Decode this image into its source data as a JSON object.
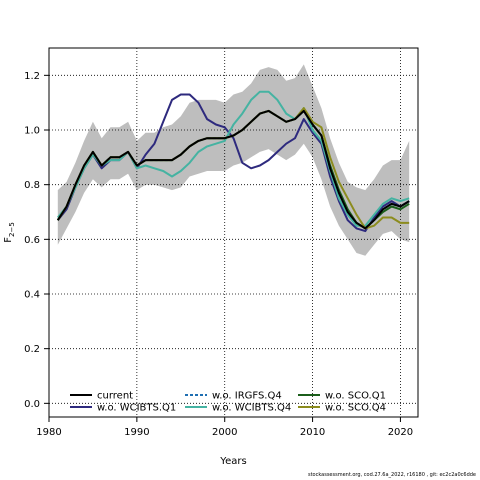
{
  "chart_data": {
    "type": "line",
    "xlabel": "Years",
    "ylabel": "F",
    "ylabel_sub": "2−5",
    "xlim": [
      1980,
      2022
    ],
    "ylim": [
      -0.05,
      1.3
    ],
    "x_ticks": [
      1980,
      1990,
      2000,
      2010,
      2020
    ],
    "y_ticks": [
      0.0,
      0.2,
      0.4,
      0.6,
      0.8,
      1.0,
      1.2
    ],
    "grid": true,
    "legend_position": "bottom-left",
    "band": {
      "color": "#bebebe",
      "x": [
        1981,
        1982,
        1983,
        1984,
        1985,
        1986,
        1987,
        1988,
        1989,
        1990,
        1991,
        1992,
        1993,
        1994,
        1995,
        1996,
        1997,
        1998,
        1999,
        2000,
        2001,
        2002,
        2003,
        2004,
        2005,
        2006,
        2007,
        2008,
        2009,
        2010,
        2011,
        2012,
        2013,
        2014,
        2015,
        2016,
        2017,
        2018,
        2019,
        2020,
        2021
      ],
      "upper": [
        0.78,
        0.81,
        0.88,
        0.96,
        1.03,
        0.97,
        1.01,
        1.01,
        1.03,
        0.96,
        0.99,
        0.99,
        1.01,
        1.02,
        1.05,
        1.1,
        1.11,
        1.11,
        1.11,
        1.1,
        1.13,
        1.14,
        1.17,
        1.22,
        1.23,
        1.22,
        1.18,
        1.19,
        1.24,
        1.16,
        1.08,
        0.97,
        0.88,
        0.81,
        0.79,
        0.78,
        0.82,
        0.87,
        0.89,
        0.89,
        0.96
      ],
      "lower": [
        0.58,
        0.64,
        0.7,
        0.77,
        0.82,
        0.79,
        0.82,
        0.82,
        0.84,
        0.78,
        0.8,
        0.8,
        0.79,
        0.78,
        0.79,
        0.83,
        0.84,
        0.85,
        0.85,
        0.85,
        0.87,
        0.88,
        0.9,
        0.92,
        0.93,
        0.91,
        0.89,
        0.91,
        0.95,
        0.9,
        0.82,
        0.72,
        0.65,
        0.6,
        0.55,
        0.54,
        0.58,
        0.62,
        0.63,
        0.6,
        0.59
      ]
    },
    "x": [
      1981,
      1982,
      1983,
      1984,
      1985,
      1986,
      1987,
      1988,
      1989,
      1990,
      1991,
      1992,
      1993,
      1994,
      1995,
      1996,
      1997,
      1998,
      1999,
      2000,
      2001,
      2002,
      2003,
      2004,
      2005,
      2006,
      2007,
      2008,
      2009,
      2010,
      2011,
      2012,
      2013,
      2014,
      2015,
      2016,
      2017,
      2018,
      2019,
      2020,
      2021
    ],
    "series": [
      {
        "name": "current",
        "color": "#000000",
        "dash": "solid",
        "values": [
          0.67,
          0.72,
          0.8,
          0.87,
          0.92,
          0.87,
          0.9,
          0.9,
          0.92,
          0.87,
          0.89,
          0.89,
          0.89,
          0.89,
          0.91,
          0.94,
          0.96,
          0.97,
          0.97,
          0.97,
          0.98,
          1.0,
          1.03,
          1.06,
          1.07,
          1.05,
          1.03,
          1.04,
          1.07,
          1.02,
          0.98,
          0.86,
          0.77,
          0.7,
          0.66,
          0.64,
          0.67,
          0.71,
          0.73,
          0.72,
          0.74
        ]
      },
      {
        "name": "w.o. WCIBTS.Q1",
        "color": "#2e2a7e",
        "dash": "solid",
        "values": [
          0.67,
          0.71,
          0.79,
          0.86,
          0.91,
          0.86,
          0.89,
          0.89,
          0.92,
          0.86,
          0.91,
          0.95,
          1.03,
          1.11,
          1.13,
          1.13,
          1.1,
          1.04,
          1.02,
          1.01,
          0.97,
          0.88,
          0.86,
          0.87,
          0.89,
          0.92,
          0.95,
          0.97,
          1.04,
          0.99,
          0.95,
          0.83,
          0.74,
          0.67,
          0.64,
          0.63,
          0.68,
          0.72,
          0.74,
          0.72,
          0.74
        ]
      },
      {
        "name": "w.o. IRGFS.Q4",
        "color": "#1f6fb2",
        "dash": "dashed",
        "values": [
          0.67,
          0.72,
          0.8,
          0.87,
          0.92,
          0.87,
          0.9,
          0.9,
          0.92,
          0.87,
          0.89,
          0.89,
          0.89,
          0.89,
          0.91,
          0.94,
          0.96,
          0.97,
          0.97,
          0.97,
          0.98,
          1.0,
          1.03,
          1.06,
          1.07,
          1.05,
          1.03,
          1.04,
          1.07,
          1.02,
          0.98,
          0.86,
          0.77,
          0.7,
          0.66,
          0.64,
          0.67,
          0.71,
          0.73,
          0.72,
          0.74
        ]
      },
      {
        "name": "w.o. WCIBTS.Q4",
        "color": "#45b3a2",
        "dash": "solid",
        "values": [
          0.68,
          0.72,
          0.79,
          0.86,
          0.91,
          0.87,
          0.89,
          0.89,
          0.92,
          0.86,
          0.87,
          0.86,
          0.85,
          0.83,
          0.85,
          0.88,
          0.92,
          0.94,
          0.95,
          0.96,
          1.02,
          1.06,
          1.11,
          1.14,
          1.14,
          1.11,
          1.06,
          1.04,
          1.08,
          1.0,
          0.96,
          0.85,
          0.75,
          0.69,
          0.65,
          0.65,
          0.69,
          0.73,
          0.75,
          0.74,
          0.75
        ]
      },
      {
        "name": "w.o. SCO.Q1",
        "color": "#1b5e1b",
        "dash": "solid",
        "values": [
          0.67,
          0.72,
          0.8,
          0.87,
          0.92,
          0.87,
          0.9,
          0.9,
          0.92,
          0.87,
          0.89,
          0.89,
          0.89,
          0.89,
          0.91,
          0.94,
          0.96,
          0.97,
          0.97,
          0.97,
          0.98,
          1.0,
          1.03,
          1.06,
          1.07,
          1.05,
          1.03,
          1.04,
          1.07,
          1.02,
          0.98,
          0.87,
          0.78,
          0.71,
          0.66,
          0.64,
          0.67,
          0.7,
          0.72,
          0.71,
          0.73
        ]
      },
      {
        "name": "w.o. SCO.Q4",
        "color": "#8c8c1e",
        "dash": "solid",
        "values": [
          0.67,
          0.72,
          0.8,
          0.87,
          0.92,
          0.87,
          0.9,
          0.9,
          0.92,
          0.87,
          0.89,
          0.89,
          0.89,
          0.89,
          0.91,
          0.94,
          0.96,
          0.97,
          0.97,
          0.97,
          0.98,
          1.0,
          1.03,
          1.06,
          1.07,
          1.05,
          1.03,
          1.04,
          1.08,
          1.03,
          1.01,
          0.9,
          0.81,
          0.75,
          0.69,
          0.64,
          0.65,
          0.68,
          0.68,
          0.66,
          0.66
        ]
      }
    ]
  },
  "legend": {
    "items": [
      {
        "label": "current",
        "color": "#000000",
        "dash": "solid"
      },
      {
        "label": "w.o. WCIBTS.Q1",
        "color": "#2e2a7e",
        "dash": "solid"
      },
      {
        "label": "w.o. IRGFS.Q4",
        "color": "#1f6fb2",
        "dash": "dashed"
      },
      {
        "label": "w.o. WCIBTS.Q4",
        "color": "#45b3a2",
        "dash": "solid"
      },
      {
        "label": "w.o. SCO.Q1",
        "color": "#1b5e1b",
        "dash": "solid"
      },
      {
        "label": "w.o. SCO.Q4",
        "color": "#8c8c1e",
        "dash": "solid"
      }
    ]
  },
  "footer": {
    "note": "stockassessment.org, cod.27.6a_2022, r16180 , git: ec2c2a0c6dde"
  }
}
